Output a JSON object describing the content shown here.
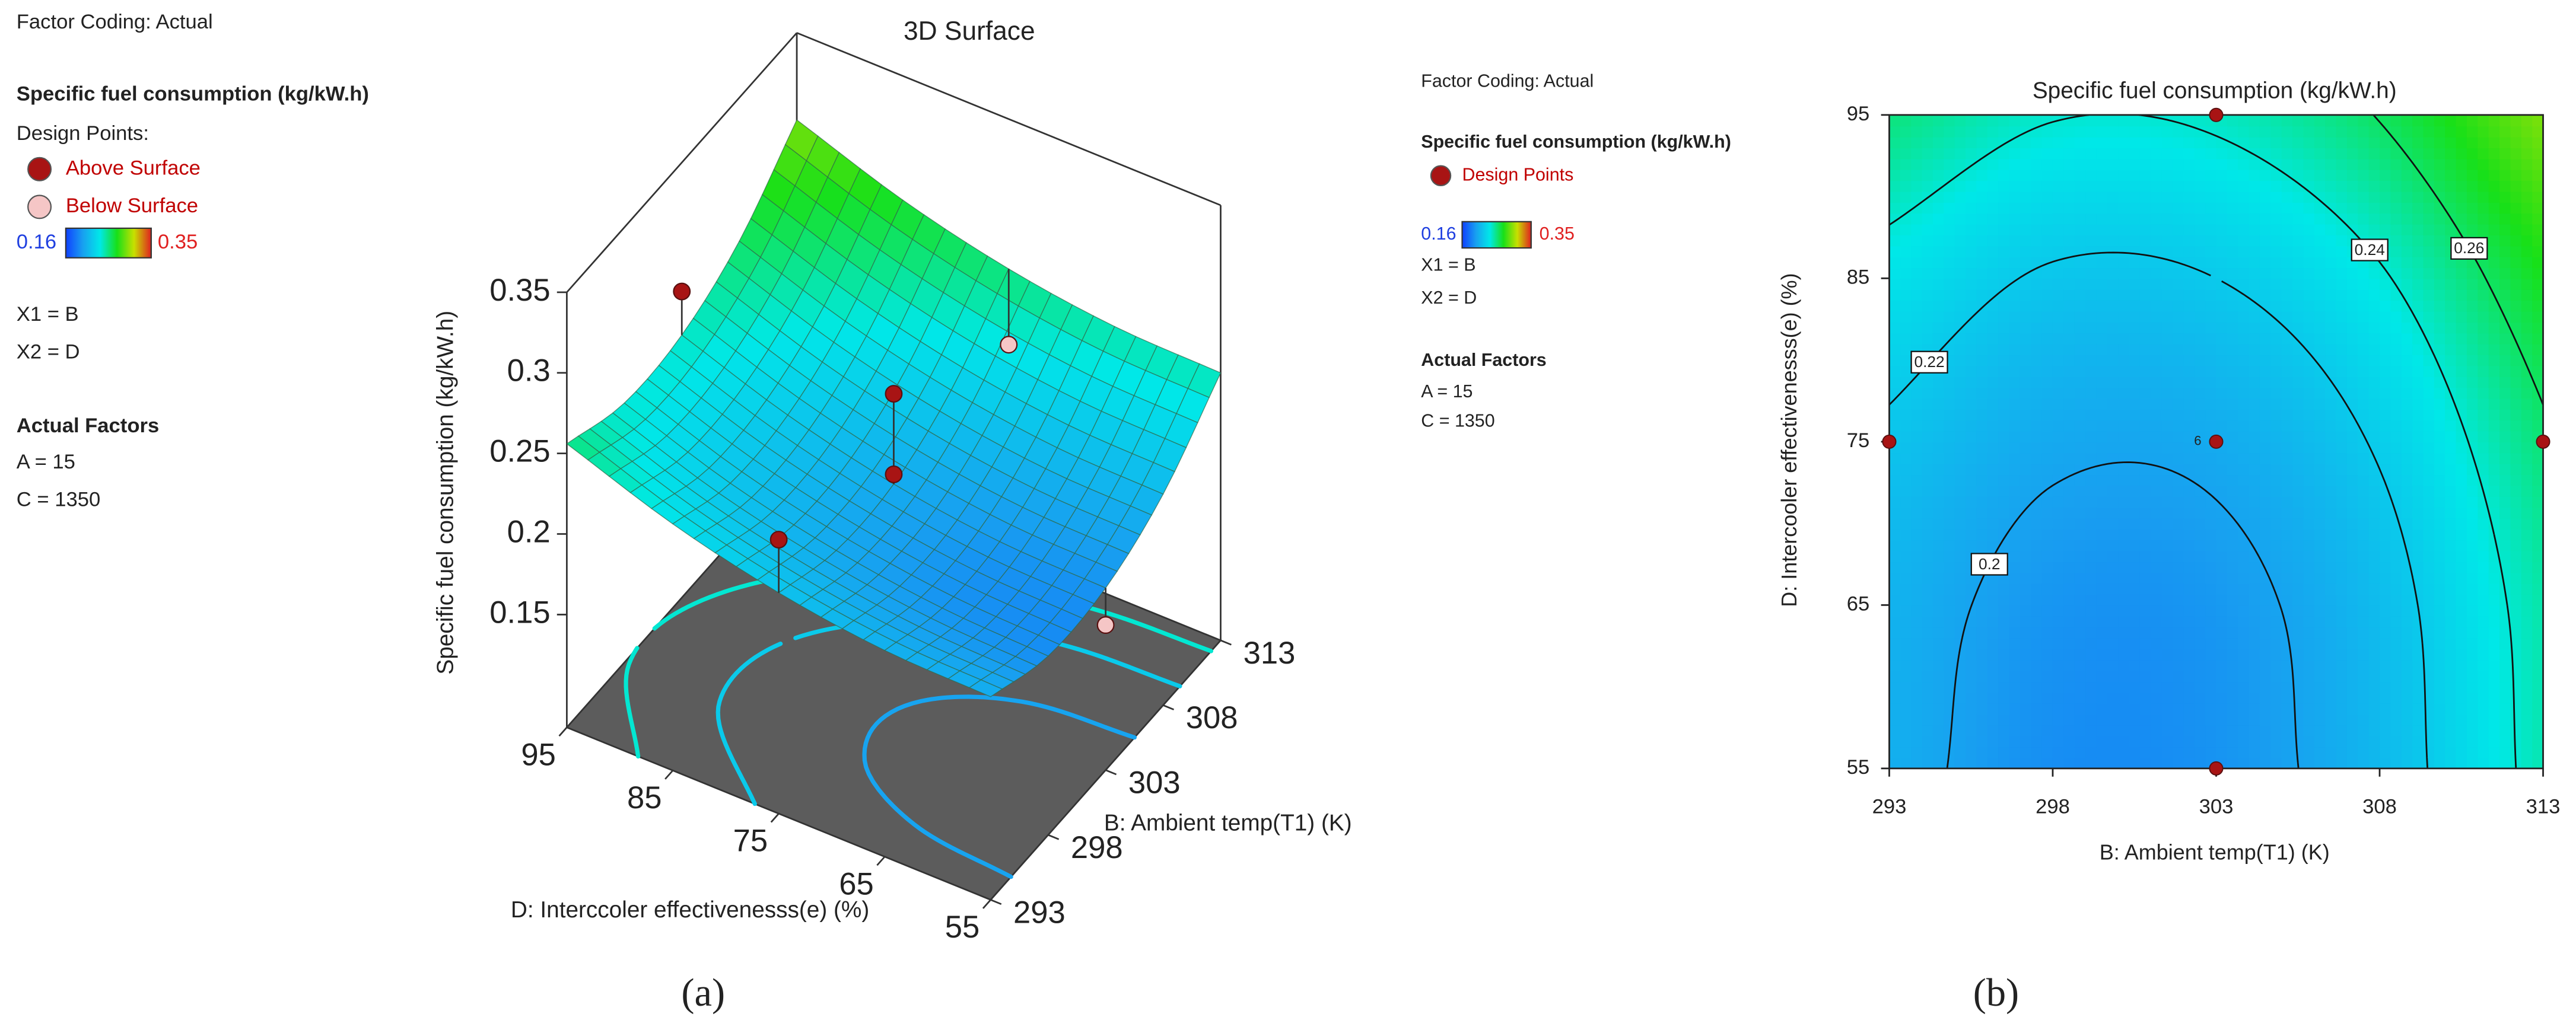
{
  "chart_data": [
    {
      "type": "surface",
      "title": "3D Surface",
      "panel_label": "(a)",
      "factor_coding": "Factor Coding: Actual",
      "response": "Specific fuel consumption (kg/kW.h)",
      "design_points_title": "Design Points:",
      "legend": [
        {
          "name": "Above Surface",
          "color": "#a81414"
        },
        {
          "name": "Below Surface",
          "color": "#f5c6c6"
        }
      ],
      "colorbar": {
        "min": 0.16,
        "max": 0.35,
        "colors": [
          "#1040ff",
          "#18a0f0",
          "#00e8e8",
          "#18e018",
          "#c8e000",
          "#e02020"
        ]
      },
      "factors": [
        "X1 = B",
        "X2 = D"
      ],
      "actual_factors_title": "Actual Factors",
      "actual_factors": [
        "A = 15",
        "C = 1350"
      ],
      "xlabel": "B: Ambient temp(T1) (K)",
      "ylabel": "D: Interccoler effectivenesss(e) (%)",
      "zlabel": "Specific fuel consumption (kg/kW.h)",
      "x": [
        293,
        298,
        303,
        308,
        313
      ],
      "y": [
        55,
        65,
        75,
        85,
        95
      ],
      "z": [
        [
          0.206,
          0.191,
          0.193,
          0.211,
          0.246
        ],
        [
          0.208,
          0.194,
          0.195,
          0.213,
          0.248
        ],
        [
          0.217,
          0.203,
          0.204,
          0.222,
          0.257
        ],
        [
          0.233,
          0.218,
          0.22,
          0.238,
          0.273
        ],
        [
          0.256,
          0.241,
          0.243,
          0.261,
          0.296
        ]
      ],
      "xlim": [
        293,
        313
      ],
      "ylim": [
        55,
        95
      ],
      "zlim": [
        0.08,
        0.35
      ],
      "xticks": [
        293,
        298,
        303,
        308,
        313
      ],
      "yticks": [
        55,
        65,
        75,
        85,
        95
      ],
      "zticks": [
        0.15,
        0.2,
        0.25,
        0.3,
        0.35
      ],
      "floor_levels": [
        0.2,
        0.22,
        0.24
      ],
      "design_points": {
        "x": [
          293,
          303,
          303,
          303,
          303,
          313
        ],
        "y": [
          75,
          95,
          75,
          75,
          55,
          75
        ],
        "values": [
          0.25,
          0.27,
          0.26,
          0.21,
          0.17,
          0.21
        ]
      }
    },
    {
      "type": "contour",
      "title": "Specific fuel consumption (kg/kW.h)",
      "panel_label": "(b)",
      "factor_coding": "Factor Coding: Actual",
      "response": "Specific fuel consumption (kg/kW.h)",
      "legend": [
        {
          "name": "Design Points",
          "color": "#a81414"
        }
      ],
      "colorbar": {
        "min": 0.16,
        "max": 0.35,
        "colors": [
          "#1040ff",
          "#18a0f0",
          "#00e8e8",
          "#18e018",
          "#c8e000",
          "#e02020"
        ]
      },
      "factors": [
        "X1 = B",
        "X2 = D"
      ],
      "actual_factors_title": "Actual Factors",
      "actual_factors": [
        "A = 15",
        "C = 1350"
      ],
      "xlabel": "B: Ambient temp(T1) (K)",
      "ylabel": "D: Intercooler effectivenesss(e) (%)",
      "x": [
        293,
        298,
        303,
        308,
        313
      ],
      "y": [
        55,
        65,
        75,
        85,
        95
      ],
      "z": [
        [
          0.206,
          0.191,
          0.193,
          0.211,
          0.246
        ],
        [
          0.208,
          0.194,
          0.195,
          0.213,
          0.248
        ],
        [
          0.217,
          0.203,
          0.204,
          0.222,
          0.257
        ],
        [
          0.233,
          0.218,
          0.22,
          0.238,
          0.273
        ],
        [
          0.256,
          0.241,
          0.243,
          0.261,
          0.296
        ]
      ],
      "xlim": [
        293,
        313
      ],
      "ylim": [
        55,
        95
      ],
      "xticks": [
        293,
        298,
        303,
        308,
        313
      ],
      "yticks": [
        55,
        65,
        75,
        85,
        95
      ],
      "levels": [
        0.2,
        0.22,
        0.24,
        0.26
      ],
      "design_points": {
        "x": [
          293,
          303,
          303,
          303,
          313
        ],
        "y": [
          75,
          95,
          75,
          55,
          75
        ]
      },
      "center_point_count": 6
    }
  ]
}
